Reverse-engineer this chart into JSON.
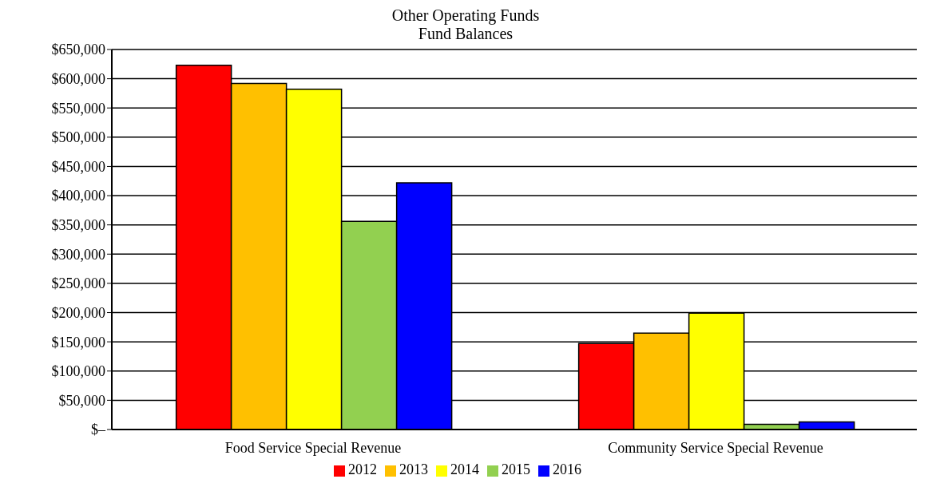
{
  "chart_data": {
    "type": "bar",
    "title": "Other Operating Funds",
    "subtitle": "Fund Balances",
    "categories": [
      "Food Service Special Revenue",
      "Community Service Special Revenue"
    ],
    "series": [
      {
        "name": "2012",
        "color": "#ff0000",
        "values": [
          623000,
          147000
        ]
      },
      {
        "name": "2013",
        "color": "#ffc000",
        "values": [
          592000,
          165000
        ]
      },
      {
        "name": "2014",
        "color": "#ffff00",
        "values": [
          582000,
          199000
        ]
      },
      {
        "name": "2015",
        "color": "#92d050",
        "values": [
          356000,
          9000
        ]
      },
      {
        "name": "2016",
        "color": "#0000ff",
        "values": [
          422000,
          13000
        ]
      }
    ],
    "ylim": [
      0,
      650000
    ],
    "yticks": [
      {
        "value": 0,
        "label": "$–"
      },
      {
        "value": 50000,
        "label": "$50,000"
      },
      {
        "value": 100000,
        "label": "$100,000"
      },
      {
        "value": 150000,
        "label": "$150,000"
      },
      {
        "value": 200000,
        "label": "$200,000"
      },
      {
        "value": 250000,
        "label": "$250,000"
      },
      {
        "value": 300000,
        "label": "$300,000"
      },
      {
        "value": 350000,
        "label": "$350,000"
      },
      {
        "value": 400000,
        "label": "$400,000"
      },
      {
        "value": 450000,
        "label": "$450,000"
      },
      {
        "value": 500000,
        "label": "$500,000"
      },
      {
        "value": 550000,
        "label": "$550,000"
      },
      {
        "value": 600000,
        "label": "$600,000"
      },
      {
        "value": 650000,
        "label": "$650,000"
      }
    ],
    "grid": "y",
    "legend": "bottom"
  }
}
